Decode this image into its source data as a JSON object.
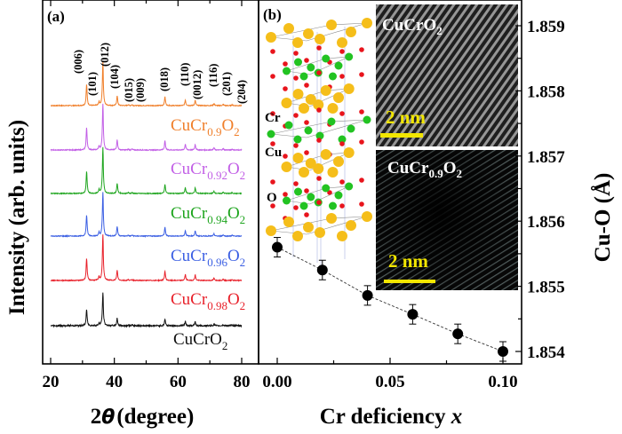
{
  "panel_a": {
    "label": "(a)",
    "xlabel_pre": "2",
    "xlabel_theta": "θ",
    "xlabel_post": "(degree)",
    "ylabel": "Intensity (arb. units)"
  },
  "panel_b": {
    "label": "(b)",
    "xlabel_pre": "Cr deficiency ",
    "xlabel_var": "x",
    "ylabel": "Cu-O (Å)",
    "atom_labels": [
      "Cr",
      "Cu",
      "O"
    ],
    "atom_colors": {
      "Cu": "#f5be1a",
      "Cr": "#22c322",
      "O": "#e8141c"
    },
    "tem_top": {
      "title_base": "CuCrO",
      "title_sub": "2",
      "scale": "2 nm"
    },
    "tem_bottom": {
      "title_base": "CuCr",
      "title_sub1": "0.9",
      "title_el": "O",
      "title_sub2": "2",
      "scale": "2 nm"
    }
  },
  "chart_data": [
    {
      "type": "line",
      "title": "",
      "xlabel": "2θ (degree)",
      "ylabel": "Intensity (arb. units)",
      "xlim": [
        20,
        80
      ],
      "xticks": [
        20,
        40,
        60,
        80
      ],
      "xtick_labels": [
        "20",
        "40",
        "60",
        "80"
      ],
      "peaks": [
        {
          "hkl": "(006)",
          "two_theta": 31.3,
          "rel_intensity": 0.48
        },
        {
          "hkl": "(101)",
          "two_theta": 35.2,
          "rel_intensity": 0.08
        },
        {
          "hkl": "(012)",
          "two_theta": 36.4,
          "rel_intensity": 1.0
        },
        {
          "hkl": "(104)",
          "two_theta": 40.9,
          "rel_intensity": 0.22
        },
        {
          "hkl": "(015)",
          "two_theta": 44.4,
          "rel_intensity": 0.02
        },
        {
          "hkl": "(009)",
          "two_theta": 45.6,
          "rel_intensity": 0.02
        },
        {
          "hkl": "(018)",
          "two_theta": 55.9,
          "rel_intensity": 0.2
        },
        {
          "hkl": "(110)",
          "two_theta": 62.3,
          "rel_intensity": 0.13
        },
        {
          "hkl": "(0012)",
          "two_theta": 65.4,
          "rel_intensity": 0.12
        },
        {
          "hkl": "(116)",
          "two_theta": 71.3,
          "rel_intensity": 0.05
        },
        {
          "hkl": "(201)",
          "two_theta": 74.2,
          "rel_intensity": 0.03
        },
        {
          "hkl": "(204)",
          "two_theta": 77.0,
          "rel_intensity": 0.02
        }
      ],
      "series": [
        {
          "name": "CuCr0.9O2",
          "base": "CuCr",
          "sub1": "0.9",
          "el": "O",
          "sub2": "2",
          "color": "#f07f2a",
          "scale": 0.95
        },
        {
          "name": "CuCr0.92O2",
          "base": "CuCr",
          "sub1": "0.92",
          "el": "O",
          "sub2": "2",
          "color": "#c25fe6",
          "scale": 1.0
        },
        {
          "name": "CuCr0.94O2",
          "base": "CuCr",
          "sub1": "0.94",
          "el": "O",
          "sub2": "2",
          "color": "#1ea51e",
          "scale": 1.0
        },
        {
          "name": "CuCr0.96O2",
          "base": "CuCr",
          "sub1": "0.96",
          "el": "O",
          "sub2": "2",
          "color": "#3b5fe3",
          "scale": 0.95
        },
        {
          "name": "CuCr0.98O2",
          "base": "CuCr",
          "sub1": "0.98",
          "el": "O",
          "sub2": "2",
          "color": "#e8202a",
          "scale": 1.0
        },
        {
          "name": "CuCrO2",
          "base": "CuCrO",
          "sub1": "2",
          "el": "",
          "sub2": "",
          "color": "#111111",
          "scale": 0.72
        }
      ]
    },
    {
      "type": "scatter",
      "title": "",
      "xlabel": "Cr deficiency x",
      "ylabel": "Cu-O (Å)",
      "xlim": [
        -0.008,
        0.108
      ],
      "ylim": [
        1.8538,
        1.8594
      ],
      "xtick_labels": [
        "0.00",
        "0.05",
        "0.10"
      ],
      "ytick_labels": [
        "1.854",
        "1.855",
        "1.856",
        "1.857",
        "1.858",
        "1.859"
      ],
      "x": [
        0.0,
        0.02,
        0.04,
        0.06,
        0.08,
        0.1
      ],
      "y": [
        1.8556,
        1.85525,
        1.85486,
        1.85457,
        1.85427,
        1.854
      ],
      "yerr": [
        0.00015,
        0.00015,
        0.00015,
        0.00015,
        0.00015,
        0.00015
      ],
      "fit_line": "dashed",
      "marker_color": "#000000"
    }
  ]
}
